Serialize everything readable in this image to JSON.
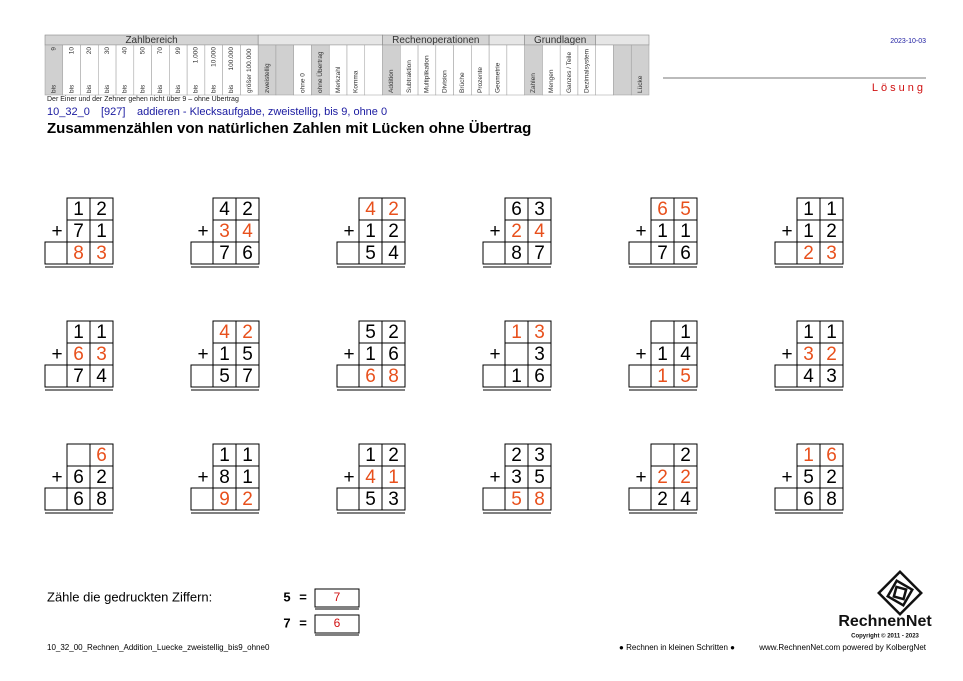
{
  "header": {
    "sections": [
      {
        "title": "Zahlbereich",
        "columns": [
          {
            "top": "9",
            "bottom": "bis",
            "shaded": true
          },
          {
            "top": "10",
            "bottom": "bis",
            "shaded": false
          },
          {
            "top": "20",
            "bottom": "bis",
            "shaded": false
          },
          {
            "top": "30",
            "bottom": "bis",
            "shaded": false
          },
          {
            "top": "40",
            "bottom": "bis",
            "shaded": false
          },
          {
            "top": "50",
            "bottom": "bis",
            "shaded": false
          },
          {
            "top": "70",
            "bottom": "bis",
            "shaded": false
          },
          {
            "top": "99",
            "bottom": "bis",
            "shaded": false
          },
          {
            "top": "1.000",
            "bottom": "bis",
            "shaded": false
          },
          {
            "top": "10.000",
            "bottom": "bis",
            "shaded": false
          },
          {
            "top": "100.000",
            "bottom": "bis",
            "shaded": false
          },
          {
            "label": "größer 100.000",
            "shaded": false
          }
        ]
      },
      {
        "title": null,
        "columns": [
          {
            "label": "zweistellig",
            "shaded": true
          },
          {
            "label": null,
            "shaded": true
          },
          {
            "label": "ohne 0",
            "shaded": false
          },
          {
            "label": "ohne Übertrag",
            "shaded": true
          },
          {
            "label": "Merkzahl",
            "shaded": false
          },
          {
            "label": "Komma",
            "shaded": false
          },
          {
            "label": null,
            "shaded": false
          }
        ]
      },
      {
        "title": "Rechenoperationen",
        "columns": [
          {
            "label": "Addition",
            "shaded": true
          },
          {
            "label": "Subtraktion",
            "shaded": false
          },
          {
            "label": "Multiplikation",
            "shaded": false
          },
          {
            "label": "Division",
            "shaded": false
          },
          {
            "label": "Brüche",
            "shaded": false
          },
          {
            "label": "Prozente",
            "shaded": false
          }
        ]
      },
      {
        "title": null,
        "columns": [
          {
            "label": "Geometrie",
            "shaded": false
          },
          {
            "label": null,
            "shaded": false
          }
        ]
      },
      {
        "title": "Grundlagen",
        "columns": [
          {
            "label": "Zahlen",
            "shaded": true
          },
          {
            "label": "Mengen",
            "shaded": false
          },
          {
            "label": "Ganzes / Teile",
            "shaded": false
          },
          {
            "label": "Dezimalsystem",
            "shaded": false
          }
        ]
      },
      {
        "title": null,
        "columns": [
          {
            "label": null,
            "shaded": false
          },
          {
            "label": null,
            "shaded": true
          },
          {
            "label": "Lücke",
            "shaded": true
          }
        ]
      }
    ],
    "date": "2023-10-03",
    "solution": "Lösung"
  },
  "note": "Der Einer und der Zehner gehen nicht über 9 – ohne Übertrag",
  "code": "10_32_0",
  "number": "[927]",
  "description": "addieren - Klecksaufgabe, zweistellig, bis 9, ohne 0",
  "title": "Zusammenzählen von natürlichen Zahlen mit Lücken ohne Übertrag",
  "operator": "+",
  "problems": [
    {
      "rows": [
        [
          1,
          2
        ],
        [
          7,
          1
        ],
        [
          8,
          3
        ]
      ],
      "answers": [
        [
          false,
          false
        ],
        [
          false,
          false
        ],
        [
          true,
          true
        ]
      ]
    },
    {
      "rows": [
        [
          4,
          2
        ],
        [
          3,
          4
        ],
        [
          7,
          6
        ]
      ],
      "answers": [
        [
          false,
          false
        ],
        [
          true,
          true
        ],
        [
          false,
          false
        ]
      ]
    },
    {
      "rows": [
        [
          4,
          2
        ],
        [
          1,
          2
        ],
        [
          5,
          4
        ]
      ],
      "answers": [
        [
          true,
          true
        ],
        [
          false,
          false
        ],
        [
          false,
          false
        ]
      ]
    },
    {
      "rows": [
        [
          6,
          3
        ],
        [
          2,
          4
        ],
        [
          8,
          7
        ]
      ],
      "answers": [
        [
          false,
          false
        ],
        [
          true,
          true
        ],
        [
          false,
          false
        ]
      ]
    },
    {
      "rows": [
        [
          6,
          5
        ],
        [
          1,
          1
        ],
        [
          7,
          6
        ]
      ],
      "answers": [
        [
          true,
          true
        ],
        [
          false,
          false
        ],
        [
          false,
          false
        ]
      ]
    },
    {
      "rows": [
        [
          1,
          1
        ],
        [
          1,
          2
        ],
        [
          2,
          3
        ]
      ],
      "answers": [
        [
          false,
          false
        ],
        [
          false,
          false
        ],
        [
          true,
          true
        ]
      ]
    },
    {
      "rows": [
        [
          1,
          1
        ],
        [
          6,
          3
        ],
        [
          7,
          4
        ]
      ],
      "answers": [
        [
          false,
          false
        ],
        [
          true,
          true
        ],
        [
          false,
          false
        ]
      ]
    },
    {
      "rows": [
        [
          4,
          2
        ],
        [
          1,
          5
        ],
        [
          5,
          7
        ]
      ],
      "answers": [
        [
          true,
          true
        ],
        [
          false,
          false
        ],
        [
          false,
          false
        ]
      ]
    },
    {
      "rows": [
        [
          5,
          2
        ],
        [
          1,
          6
        ],
        [
          6,
          8
        ]
      ],
      "answers": [
        [
          false,
          false
        ],
        [
          false,
          false
        ],
        [
          true,
          true
        ]
      ]
    },
    {
      "rows": [
        [
          1,
          3
        ],
        [
          null,
          3
        ],
        [
          1,
          6
        ]
      ],
      "answers": [
        [
          true,
          true
        ],
        [
          false,
          false
        ],
        [
          false,
          false
        ]
      ]
    },
    {
      "rows": [
        [
          null,
          1
        ],
        [
          1,
          4
        ],
        [
          1,
          5
        ]
      ],
      "answers": [
        [
          false,
          false
        ],
        [
          false,
          false
        ],
        [
          true,
          true
        ]
      ]
    },
    {
      "rows": [
        [
          1,
          1
        ],
        [
          3,
          2
        ],
        [
          4,
          3
        ]
      ],
      "answers": [
        [
          false,
          false
        ],
        [
          true,
          true
        ],
        [
          false,
          false
        ]
      ]
    },
    {
      "rows": [
        [
          null,
          6
        ],
        [
          6,
          2
        ],
        [
          6,
          8
        ]
      ],
      "answers": [
        [
          false,
          true
        ],
        [
          false,
          false
        ],
        [
          false,
          false
        ]
      ]
    },
    {
      "rows": [
        [
          1,
          1
        ],
        [
          8,
          1
        ],
        [
          9,
          2
        ]
      ],
      "answers": [
        [
          false,
          false
        ],
        [
          false,
          false
        ],
        [
          true,
          true
        ]
      ]
    },
    {
      "rows": [
        [
          1,
          2
        ],
        [
          4,
          1
        ],
        [
          5,
          3
        ]
      ],
      "answers": [
        [
          false,
          false
        ],
        [
          true,
          true
        ],
        [
          false,
          false
        ]
      ]
    },
    {
      "rows": [
        [
          2,
          3
        ],
        [
          3,
          5
        ],
        [
          5,
          8
        ]
      ],
      "answers": [
        [
          false,
          false
        ],
        [
          false,
          false
        ],
        [
          true,
          true
        ]
      ]
    },
    {
      "rows": [
        [
          null,
          2
        ],
        [
          2,
          2
        ],
        [
          2,
          4
        ]
      ],
      "answers": [
        [
          false,
          false
        ],
        [
          true,
          true
        ],
        [
          false,
          false
        ]
      ]
    },
    {
      "rows": [
        [
          1,
          6
        ],
        [
          5,
          2
        ],
        [
          6,
          8
        ]
      ],
      "answers": [
        [
          true,
          true
        ],
        [
          false,
          false
        ],
        [
          false,
          false
        ]
      ]
    }
  ],
  "count": {
    "label": "Zähle die gedruckten Ziffern:",
    "equals": "=",
    "items": [
      {
        "digit": 5,
        "count": 7
      },
      {
        "digit": 7,
        "count": 6
      }
    ]
  },
  "footer": {
    "file": "10_32_00_Rechnen_Addition_Luecke_zweistellig_bis9_ohne0",
    "slogan": "● Rechnen in kleinen Schritten ●",
    "site": "www.RechnenNet.com powered by KolbergNet",
    "logo": "RechnenNet",
    "copyright": "Copyright © 2011 - 2023"
  }
}
